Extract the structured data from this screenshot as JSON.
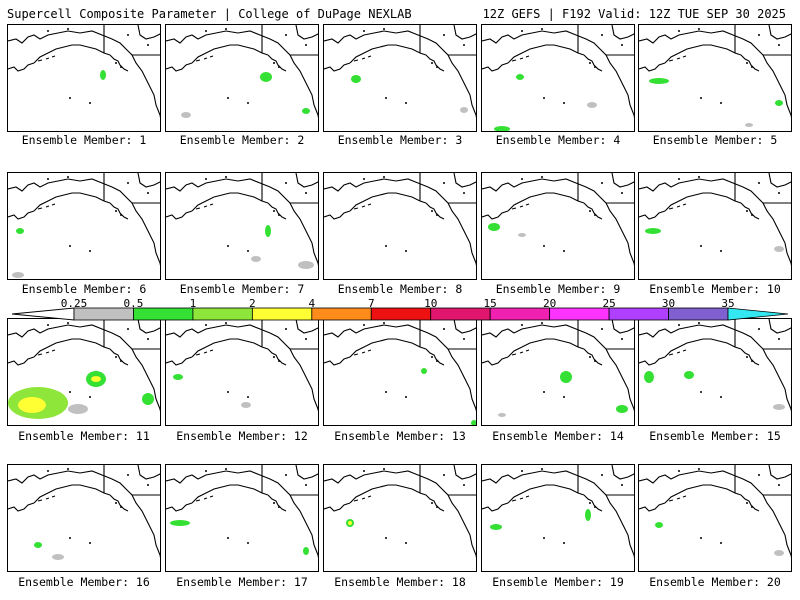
{
  "header": {
    "title_left": "Supercell Composite Parameter | College of DuPage NEXLAB",
    "title_right": "12Z GEFS | F192 Valid: 12Z TUE SEP 30 2025"
  },
  "legend": {
    "labels": [
      "0.25",
      "0.5",
      "1",
      "2",
      "4",
      "7",
      "10",
      "15",
      "20",
      "25",
      "30",
      "35"
    ],
    "colors": [
      "#c0c0c0",
      "#33e033",
      "#8ee63a",
      "#ffff33",
      "#ff8c1a",
      "#ee1111",
      "#e0166e",
      "#f020b0",
      "#ff33ff",
      "#b040ff",
      "#8060d0",
      "#33e8f0"
    ]
  },
  "members": [
    {
      "label": "Ensemble Member: 1"
    },
    {
      "label": "Ensemble Member: 2"
    },
    {
      "label": "Ensemble Member: 3"
    },
    {
      "label": "Ensemble Member: 4"
    },
    {
      "label": "Ensemble Member: 5"
    },
    {
      "label": "Ensemble Member: 6"
    },
    {
      "label": "Ensemble Member: 7"
    },
    {
      "label": "Ensemble Member: 8"
    },
    {
      "label": "Ensemble Member: 9"
    },
    {
      "label": "Ensemble Member: 10"
    },
    {
      "label": "Ensemble Member: 11"
    },
    {
      "label": "Ensemble Member: 12"
    },
    {
      "label": "Ensemble Member: 13"
    },
    {
      "label": "Ensemble Member: 14"
    },
    {
      "label": "Ensemble Member: 15"
    },
    {
      "label": "Ensemble Member: 16"
    },
    {
      "label": "Ensemble Member: 17"
    },
    {
      "label": "Ensemble Member: 18"
    },
    {
      "label": "Ensemble Member: 19"
    },
    {
      "label": "Ensemble Member: 20"
    }
  ]
}
